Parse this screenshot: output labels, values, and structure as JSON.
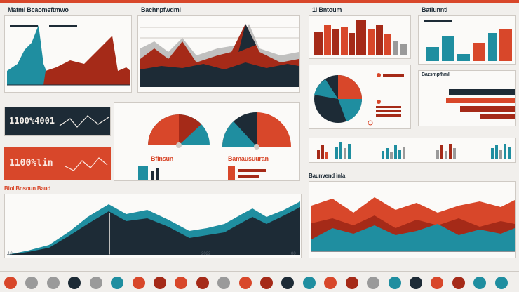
{
  "colors": {
    "navy": "#1d2b36",
    "teal": "#1f8ea0",
    "red": "#a52a18",
    "orange": "#d8472a",
    "gray": "#9a9a9a",
    "cream": "#f1efec"
  },
  "labels": {
    "panel1_title": "Matml Bcaomeftmwo",
    "panel2_title": "Bachnpfwdml",
    "panel3_title": "1i Bntoum",
    "panel4_title": "Batiunntl",
    "panel5_title": "Bazsmpfhml",
    "kpi1_value": "1100%4001",
    "kpi2_value": "1100%lin",
    "gauge1_label": "Bfinsun",
    "gauge2_label": "Bamausuuran",
    "section_left_title": "Biol Bnsoun Baud",
    "section_right_title": "Baunvend inla",
    "axis_tick_left": "10",
    "axis_tick_right": "00",
    "axis_tick_mid": "2022"
  },
  "chart_data": [
    {
      "type": "area",
      "series": [
        {
          "color": "#1f8ea0",
          "values": [
            10,
            15,
            25,
            55,
            95,
            40,
            30,
            20,
            15,
            10
          ]
        },
        {
          "color": "#a52a18",
          "values": [
            5,
            10,
            15,
            20,
            35,
            40,
            50,
            60,
            85,
            30
          ]
        }
      ]
    },
    {
      "type": "area",
      "series": [
        {
          "color": "#a52a18",
          "values": [
            40,
            55,
            45,
            75,
            50,
            60,
            45,
            70,
            95,
            55,
            40
          ]
        },
        {
          "color": "#1d2b36",
          "values": [
            25,
            30,
            25,
            35,
            30,
            28,
            32,
            30,
            40,
            35,
            30
          ]
        }
      ]
    },
    {
      "type": "bar",
      "values": [
        40,
        70,
        30,
        60,
        80,
        100,
        65,
        50,
        75,
        30,
        55
      ]
    },
    {
      "type": "bar",
      "values": [
        35,
        80,
        20,
        55,
        90,
        30,
        50,
        85,
        40
      ]
    },
    {
      "type": "pie",
      "values": [
        45,
        25,
        20,
        10
      ]
    },
    {
      "type": "bar",
      "values": [
        90,
        75,
        80,
        55,
        60,
        40
      ]
    },
    {
      "type": "area",
      "series": [
        {
          "color": "#1f8ea0",
          "values": [
            10,
            15,
            20,
            35,
            55,
            80,
            70,
            75,
            60,
            40,
            45,
            35,
            50,
            75,
            80,
            55,
            70,
            90,
            85
          ]
        },
        {
          "color": "#1d2b36",
          "values": [
            8,
            12,
            18,
            30,
            45,
            70,
            60,
            65,
            50,
            35,
            38,
            30,
            45,
            65,
            70,
            48,
            60,
            85,
            82
          ]
        }
      ]
    },
    {
      "type": "area",
      "series": [
        {
          "color": "#d8472a",
          "values": [
            70,
            75,
            60,
            78,
            65,
            72,
            68,
            60,
            70,
            58
          ]
        },
        {
          "color": "#a52a18",
          "values": [
            45,
            50,
            42,
            55,
            40,
            52,
            48,
            45,
            50,
            42
          ]
        },
        {
          "color": "#1f8ea0",
          "values": [
            20,
            35,
            28,
            40,
            30,
            25,
            38,
            30,
            35,
            28
          ]
        }
      ]
    }
  ]
}
